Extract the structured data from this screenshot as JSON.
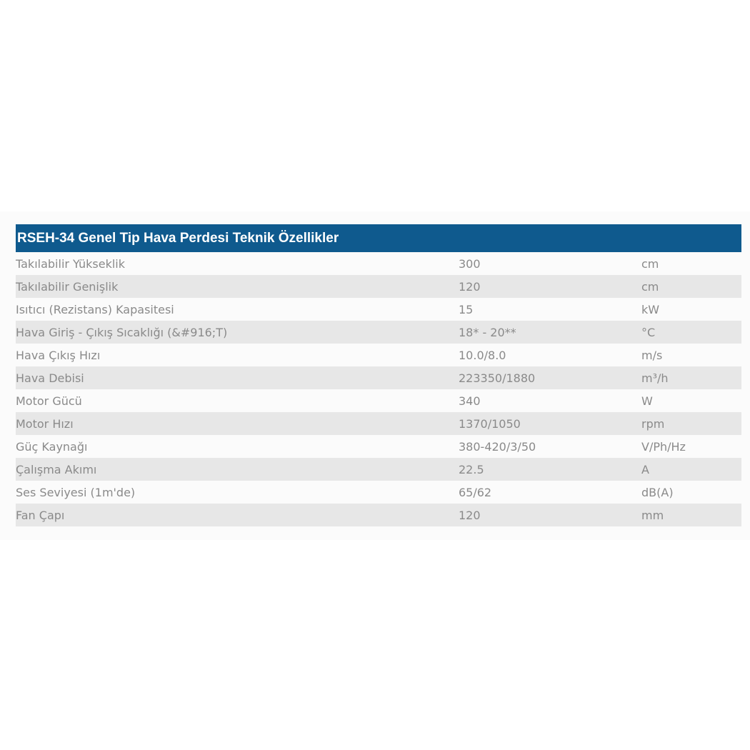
{
  "table": {
    "title": "RSEH-34 Genel Tip Hava Perdesi Teknik Özellikler",
    "rows": [
      {
        "name": "Takılabilir Yükseklik",
        "value": "300",
        "unit": "cm"
      },
      {
        "name": "Takılabilir Genişlik",
        "value": "120",
        "unit": "cm"
      },
      {
        "name": "Isıtıcı (Rezistans) Kapasitesi",
        "value": "15",
        "unit": "kW"
      },
      {
        "name": "Hava Giriş - Çıkış Sıcaklığı (&#916;T)",
        "value": "18* - 20**",
        "unit": "°C"
      },
      {
        "name": "Hava Çıkış Hızı",
        "value": "10.0/8.0",
        "unit": "m/s"
      },
      {
        "name": "Hava Debisi",
        "value": "223350/1880",
        "unit": "m³/h"
      },
      {
        "name": "Motor Gücü",
        "value": "340",
        "unit": "W"
      },
      {
        "name": "Motor Hızı",
        "value": "1370/1050",
        "unit": "rpm"
      },
      {
        "name": "Güç Kaynağı",
        "value": "380-420/3/50",
        "unit": "V/Ph/Hz"
      },
      {
        "name": "Çalışma Akımı",
        "value": "22.5",
        "unit": "A"
      },
      {
        "name": "Ses Seviyesi (1m'de)",
        "value": "65/62",
        "unit": "dB(A)"
      },
      {
        "name": "Fan Çapı",
        "value": "120",
        "unit": "mm"
      }
    ]
  },
  "colors": {
    "header_background": "#0f5a8e",
    "header_text": "#ffffff",
    "alternate_row_background": "#e7e7e7",
    "cell_text": "#8a8a8a"
  }
}
